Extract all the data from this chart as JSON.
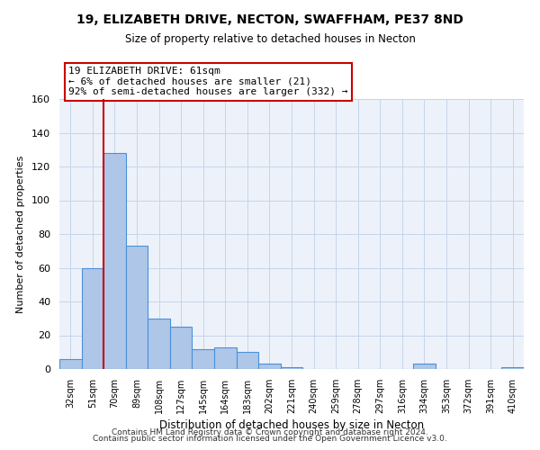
{
  "title": "19, ELIZABETH DRIVE, NECTON, SWAFFHAM, PE37 8ND",
  "subtitle": "Size of property relative to detached houses in Necton",
  "xlabel": "Distribution of detached houses by size in Necton",
  "ylabel": "Number of detached properties",
  "bar_labels": [
    "32sqm",
    "51sqm",
    "70sqm",
    "89sqm",
    "108sqm",
    "127sqm",
    "145sqm",
    "164sqm",
    "183sqm",
    "202sqm",
    "221sqm",
    "240sqm",
    "259sqm",
    "278sqm",
    "297sqm",
    "316sqm",
    "334sqm",
    "353sqm",
    "372sqm",
    "391sqm",
    "410sqm"
  ],
  "bar_values": [
    6,
    60,
    128,
    73,
    30,
    25,
    12,
    13,
    10,
    3,
    1,
    0,
    0,
    0,
    0,
    0,
    3,
    0,
    0,
    0,
    1
  ],
  "bar_color": "#aec6e8",
  "bar_edge_color": "#4a90d9",
  "red_line_x": 1.5,
  "marker_label": "19 ELIZABETH DRIVE: 61sqm",
  "annotation_line1": "← 6% of detached houses are smaller (21)",
  "annotation_line2": "92% of semi-detached houses are larger (332) →",
  "ylim": [
    0,
    160
  ],
  "yticks": [
    0,
    20,
    40,
    60,
    80,
    100,
    120,
    140,
    160
  ],
  "red_line_color": "#cc0000",
  "footer1": "Contains HM Land Registry data © Crown copyright and database right 2024.",
  "footer2": "Contains public sector information licensed under the Open Government Licence v3.0.",
  "bg_color": "#edf2fa",
  "grid_color": "#c5d5ea"
}
